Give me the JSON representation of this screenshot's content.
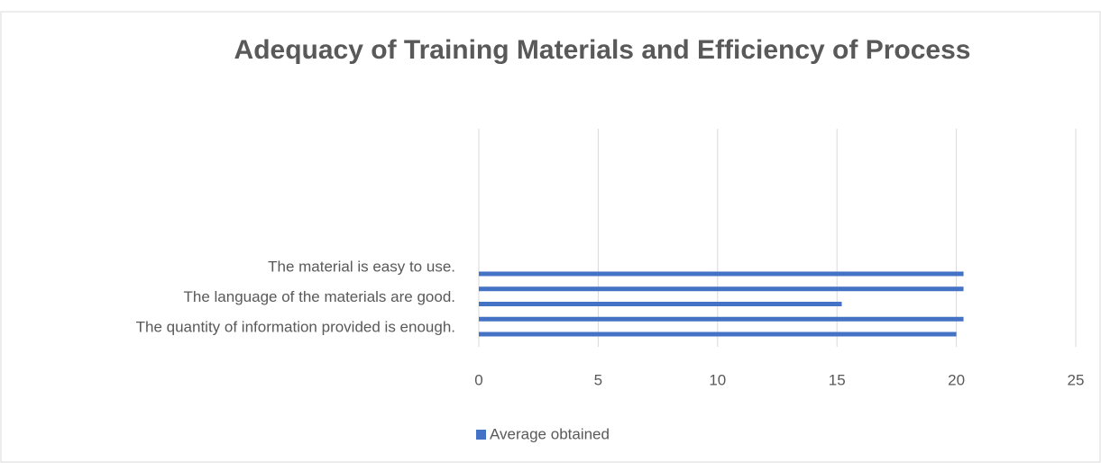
{
  "chart_data": {
    "type": "hbar",
    "title": "Adequacy of Training Materials and Efficiency of Process",
    "categories": [
      "The material is easy to use.",
      null,
      "The language of the materials are good.",
      null,
      "The quantity of information provided is enough."
    ],
    "series": [
      {
        "name": "Average obtained",
        "color": "#4472c4",
        "values": [
          20.3,
          20.3,
          15.2,
          20.3,
          20.0
        ]
      }
    ],
    "xlim": [
      0,
      25
    ],
    "xticks": [
      0,
      5,
      10,
      15,
      20,
      25
    ],
    "grid": true,
    "legend": "bottom"
  }
}
